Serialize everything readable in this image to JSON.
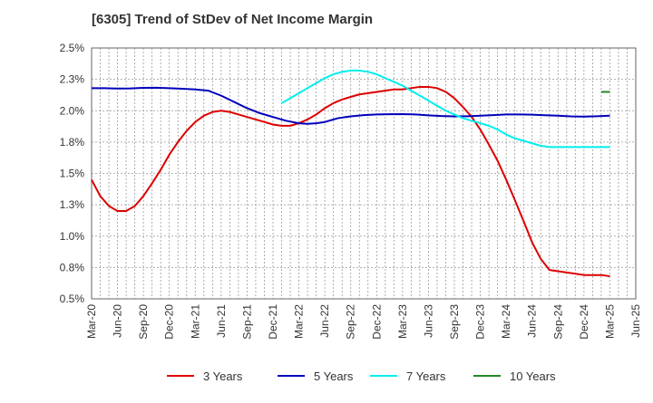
{
  "chart_data": {
    "type": "line",
    "title": "[6305]  Trend of StDev of Net Income Margin",
    "xlabel": "",
    "ylabel": "",
    "x_ticks": [
      "Mar-20",
      "Jun-20",
      "Sep-20",
      "Dec-20",
      "Mar-21",
      "Jun-21",
      "Sep-21",
      "Dec-21",
      "Mar-22",
      "Jun-22",
      "Sep-22",
      "Dec-22",
      "Mar-23",
      "Jun-23",
      "Sep-23",
      "Dec-23",
      "Mar-24",
      "Jun-24",
      "Sep-24",
      "Dec-24",
      "Mar-25",
      "Jun-25"
    ],
    "y_ticks": [
      "0.5%",
      "0.8%",
      "1.0%",
      "1.3%",
      "1.5%",
      "1.8%",
      "2.0%",
      "2.3%",
      "2.5%"
    ],
    "ylim": [
      0.5,
      2.5
    ],
    "x_minor_per_major": 3,
    "grid": "dashed vertical and horizontal",
    "legend_position": "bottom",
    "series": [
      {
        "name": "3 Years",
        "color": "#dd0000",
        "points": [
          [
            0,
            1.45
          ],
          [
            0.33,
            1.32
          ],
          [
            0.67,
            1.24
          ],
          [
            1,
            1.2
          ],
          [
            1.33,
            1.2
          ],
          [
            1.67,
            1.24
          ],
          [
            2,
            1.32
          ],
          [
            2.33,
            1.42
          ],
          [
            2.67,
            1.53
          ],
          [
            3,
            1.65
          ],
          [
            3.33,
            1.75
          ],
          [
            3.67,
            1.84
          ],
          [
            4,
            1.91
          ],
          [
            4.33,
            1.96
          ],
          [
            4.67,
            1.99
          ],
          [
            5,
            2.0
          ],
          [
            5.33,
            1.99
          ],
          [
            5.67,
            1.97
          ],
          [
            6,
            1.95
          ],
          [
            6.33,
            1.93
          ],
          [
            6.67,
            1.91
          ],
          [
            7,
            1.89
          ],
          [
            7.33,
            1.88
          ],
          [
            7.67,
            1.88
          ],
          [
            8,
            1.9
          ],
          [
            8.33,
            1.93
          ],
          [
            8.67,
            1.97
          ],
          [
            9,
            2.02
          ],
          [
            9.33,
            2.06
          ],
          [
            9.67,
            2.09
          ],
          [
            10,
            2.11
          ],
          [
            10.33,
            2.13
          ],
          [
            10.67,
            2.14
          ],
          [
            11,
            2.15
          ],
          [
            11.33,
            2.16
          ],
          [
            11.67,
            2.17
          ],
          [
            12,
            2.17
          ],
          [
            12.33,
            2.18
          ],
          [
            12.67,
            2.19
          ],
          [
            13,
            2.19
          ],
          [
            13.33,
            2.18
          ],
          [
            13.67,
            2.15
          ],
          [
            14,
            2.1
          ],
          [
            14.33,
            2.03
          ],
          [
            14.67,
            1.95
          ],
          [
            15,
            1.85
          ],
          [
            15.33,
            1.73
          ],
          [
            15.67,
            1.6
          ],
          [
            16,
            1.45
          ],
          [
            16.33,
            1.29
          ],
          [
            16.67,
            1.12
          ],
          [
            17,
            0.95
          ],
          [
            17.33,
            0.82
          ],
          [
            17.67,
            0.73
          ],
          [
            18,
            0.72
          ],
          [
            18.33,
            0.71
          ],
          [
            18.67,
            0.7
          ],
          [
            19,
            0.69
          ],
          [
            19.33,
            0.69
          ],
          [
            19.67,
            0.69
          ],
          [
            20,
            0.68
          ]
        ]
      },
      {
        "name": "5 Years",
        "color": "#0000bb",
        "points": [
          [
            0,
            2.18
          ],
          [
            0.5,
            2.18
          ],
          [
            1,
            2.177
          ],
          [
            1.5,
            2.178
          ],
          [
            2,
            2.182
          ],
          [
            2.5,
            2.183
          ],
          [
            3,
            2.18
          ],
          [
            3.5,
            2.175
          ],
          [
            4,
            2.17
          ],
          [
            4.5,
            2.16
          ],
          [
            5,
            2.12
          ],
          [
            5.5,
            2.07
          ],
          [
            6,
            2.02
          ],
          [
            6.5,
            1.98
          ],
          [
            7,
            1.95
          ],
          [
            7.5,
            1.92
          ],
          [
            8,
            1.9
          ],
          [
            8.33,
            1.895
          ],
          [
            8.67,
            1.9
          ],
          [
            9,
            1.91
          ],
          [
            9.5,
            1.94
          ],
          [
            10,
            1.955
          ],
          [
            10.5,
            1.965
          ],
          [
            11,
            1.97
          ],
          [
            11.5,
            1.972
          ],
          [
            12,
            1.973
          ],
          [
            12.5,
            1.97
          ],
          [
            13,
            1.963
          ],
          [
            13.5,
            1.958
          ],
          [
            14,
            1.955
          ],
          [
            14.5,
            1.956
          ],
          [
            15,
            1.96
          ],
          [
            15.5,
            1.965
          ],
          [
            16,
            1.97
          ],
          [
            16.5,
            1.97
          ],
          [
            17,
            1.968
          ],
          [
            17.5,
            1.964
          ],
          [
            18,
            1.96
          ],
          [
            18.5,
            1.955
          ],
          [
            19,
            1.953
          ],
          [
            19.5,
            1.956
          ],
          [
            20,
            1.96
          ]
        ]
      },
      {
        "name": "7 Years",
        "color": "#00eeee",
        "points": [
          [
            7.33,
            2.06
          ],
          [
            7.67,
            2.1
          ],
          [
            8,
            2.14
          ],
          [
            8.33,
            2.18
          ],
          [
            8.67,
            2.22
          ],
          [
            9,
            2.26
          ],
          [
            9.33,
            2.29
          ],
          [
            9.67,
            2.31
          ],
          [
            10,
            2.32
          ],
          [
            10.33,
            2.32
          ],
          [
            10.67,
            2.31
          ],
          [
            11,
            2.29
          ],
          [
            11.33,
            2.26
          ],
          [
            11.67,
            2.23
          ],
          [
            12,
            2.2
          ],
          [
            12.33,
            2.16
          ],
          [
            12.67,
            2.12
          ],
          [
            13,
            2.08
          ],
          [
            13.33,
            2.04
          ],
          [
            13.67,
            2.0
          ],
          [
            14,
            1.97
          ],
          [
            14.33,
            1.94
          ],
          [
            14.67,
            1.92
          ],
          [
            15,
            1.9
          ],
          [
            15.33,
            1.88
          ],
          [
            15.67,
            1.85
          ],
          [
            16,
            1.81
          ],
          [
            16.33,
            1.78
          ],
          [
            16.67,
            1.76
          ],
          [
            17,
            1.74
          ],
          [
            17.33,
            1.72
          ],
          [
            17.67,
            1.71
          ],
          [
            18,
            1.71
          ],
          [
            18.33,
            1.71
          ],
          [
            18.67,
            1.71
          ],
          [
            19,
            1.71
          ],
          [
            19.33,
            1.71
          ],
          [
            19.67,
            1.71
          ],
          [
            20,
            1.71
          ]
        ]
      },
      {
        "name": "10 Years",
        "color": "#228822",
        "points": [
          [
            19.67,
            2.15
          ],
          [
            20,
            2.15
          ]
        ]
      }
    ]
  }
}
